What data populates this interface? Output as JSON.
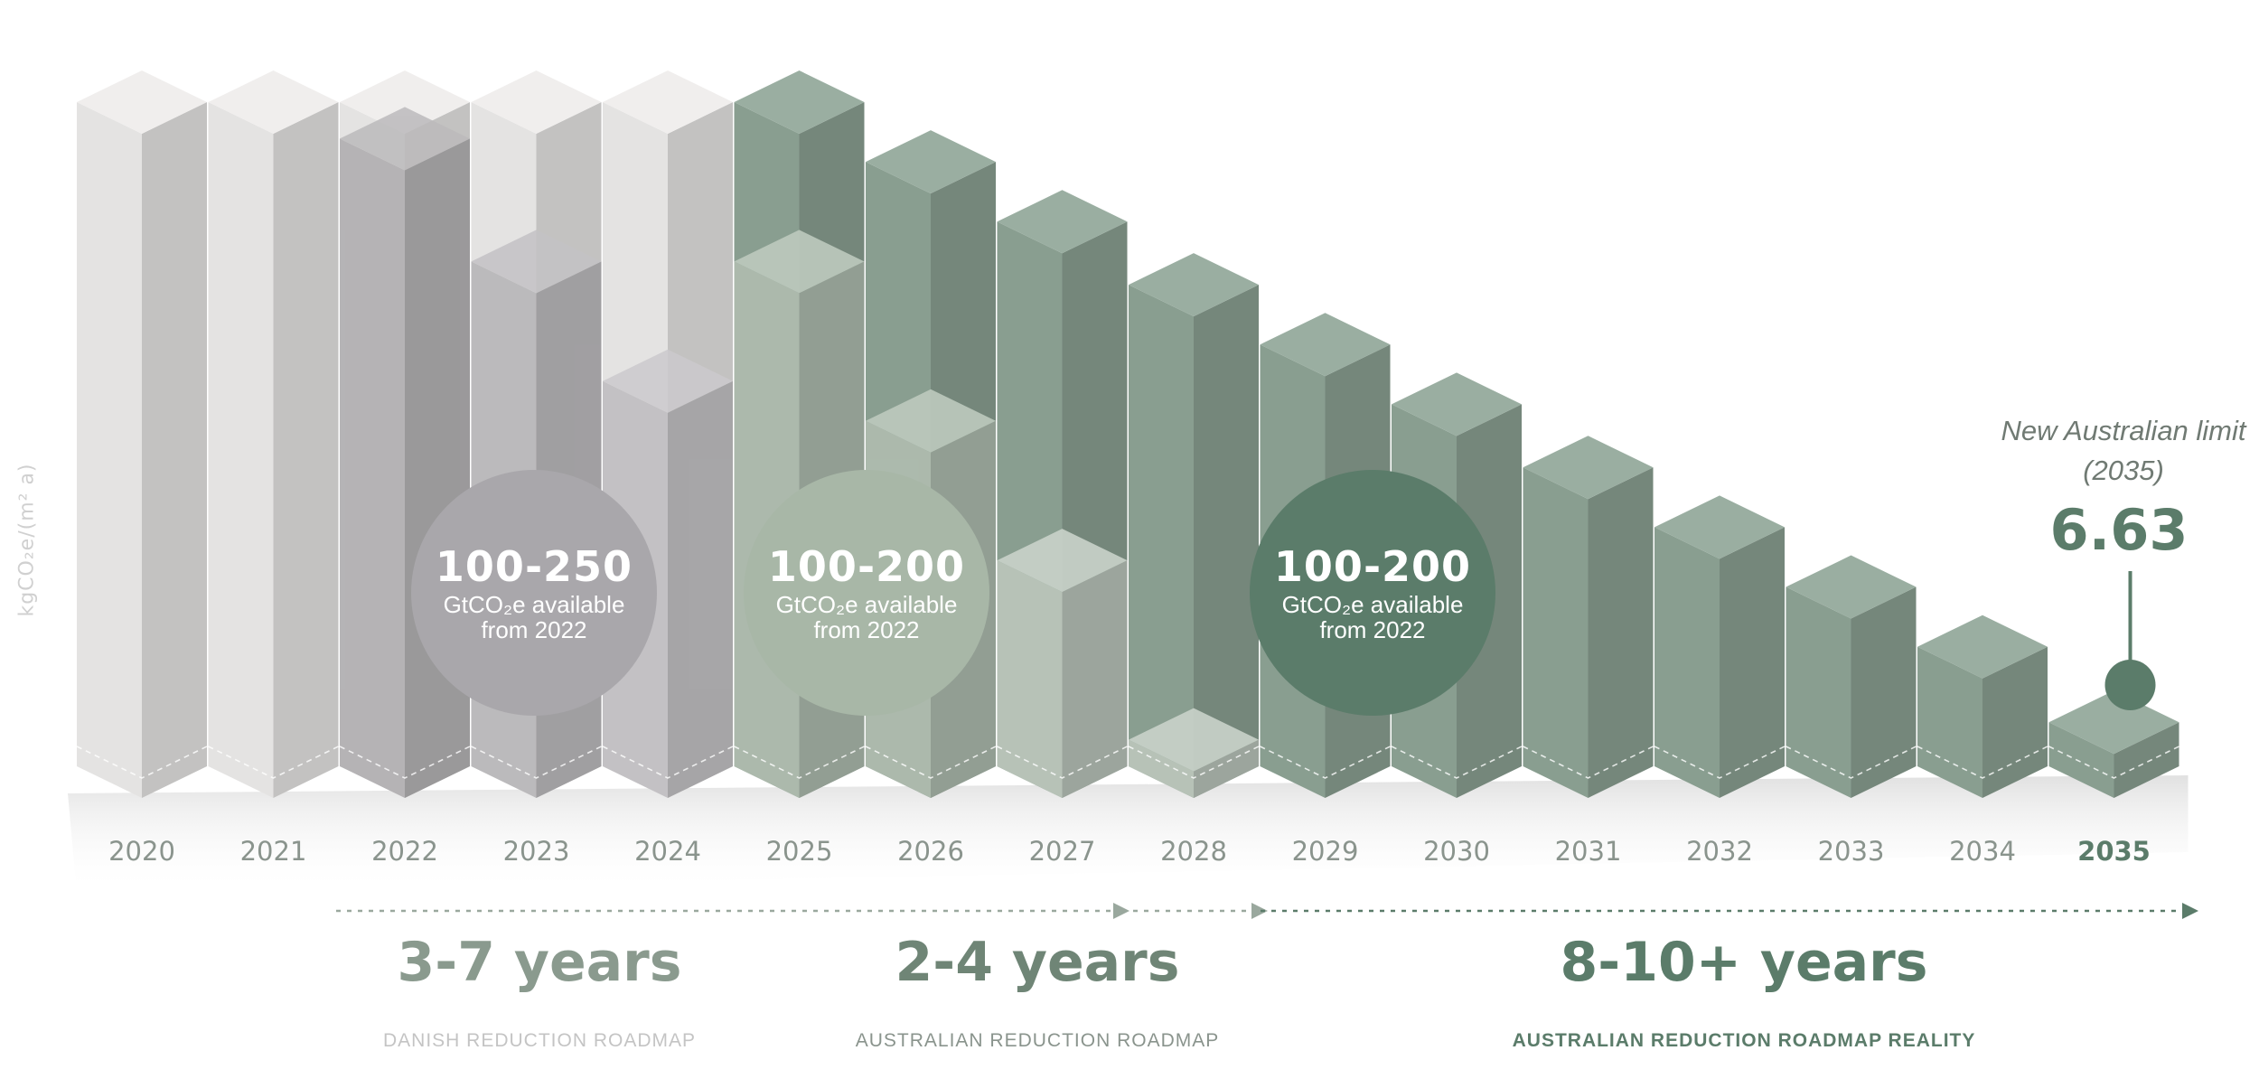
{
  "chart_data": {
    "type": "bar",
    "style": "isometric 3d bars",
    "title": "",
    "xlabel": "",
    "ylabel": "kgCO₂e/(m² a)",
    "categories": [
      "2020",
      "2021",
      "2022",
      "2023",
      "2024",
      "2025",
      "2026",
      "2027",
      "2028",
      "2029",
      "2030",
      "2031",
      "2032",
      "2033",
      "2034",
      "2035"
    ],
    "series": [
      {
        "name": "",
        "values": [
          100,
          100,
          100,
          100,
          100,
          100,
          91,
          82,
          72.5,
          63.5,
          54.5,
          45,
          36,
          27,
          18,
          6.63
        ],
        "color": "#8fa596"
      },
      {
        "name": "",
        "values": [
          null,
          null,
          94.5,
          76,
          58,
          76,
          52,
          31,
          4,
          null,
          null,
          null,
          null,
          null,
          null,
          null
        ],
        "colors": [
          "",
          "",
          "#b4b2b5",
          "#bdbbbe",
          "#c6c4c7",
          "#b7c4b7",
          "#b7c4b7",
          "#c4cec4",
          "#c4cec4"
        ]
      }
    ],
    "ylim": [
      0,
      100
    ],
    "grid": false,
    "legend": "none",
    "highlight_category": "2035"
  },
  "y_axis_label": "kgCO₂e/(m² a)",
  "circles": [
    {
      "value": "100-250",
      "line1": "GtCO₂e available",
      "line2": "from 2022",
      "color": "#a9a7ab"
    },
    {
      "value": "100-200",
      "line1": "GtCO₂e available",
      "line2": "from 2022",
      "color": "#a8b7a7"
    },
    {
      "value": "100-200",
      "line1": "GtCO₂e available",
      "line2": "from 2022",
      "color": "#5b7c6a"
    }
  ],
  "limit": {
    "title_line1": "New Australian limit",
    "title_line2": "(2035)",
    "value": "6.63"
  },
  "years": [
    "2020",
    "2021",
    "2022",
    "2023",
    "2024",
    "2025",
    "2026",
    "2027",
    "2028",
    "2029",
    "2030",
    "2031",
    "2032",
    "2033",
    "2034",
    "2035"
  ],
  "periods": [
    {
      "label": "3-7 years",
      "roadmap": "DANISH REDUCTION ROADMAP",
      "color": "#8a9a8e",
      "roadmap_color": "#c4c4c4"
    },
    {
      "label": "2-4 years",
      "roadmap": "AUSTRALIAN REDUCTION ROADMAP",
      "color": "#6f8576",
      "roadmap_color": "#8a948d"
    },
    {
      "label": "8-10+ years",
      "roadmap": "AUSTRALIAN REDUCTION ROADMAP REALITY",
      "color": "#5b7c6a",
      "roadmap_color": "#5b7c6a"
    }
  ],
  "colors": {
    "accent": "#5b7c6a",
    "grey_bar": "#eeeceb",
    "green_bar": "#8fa596"
  }
}
